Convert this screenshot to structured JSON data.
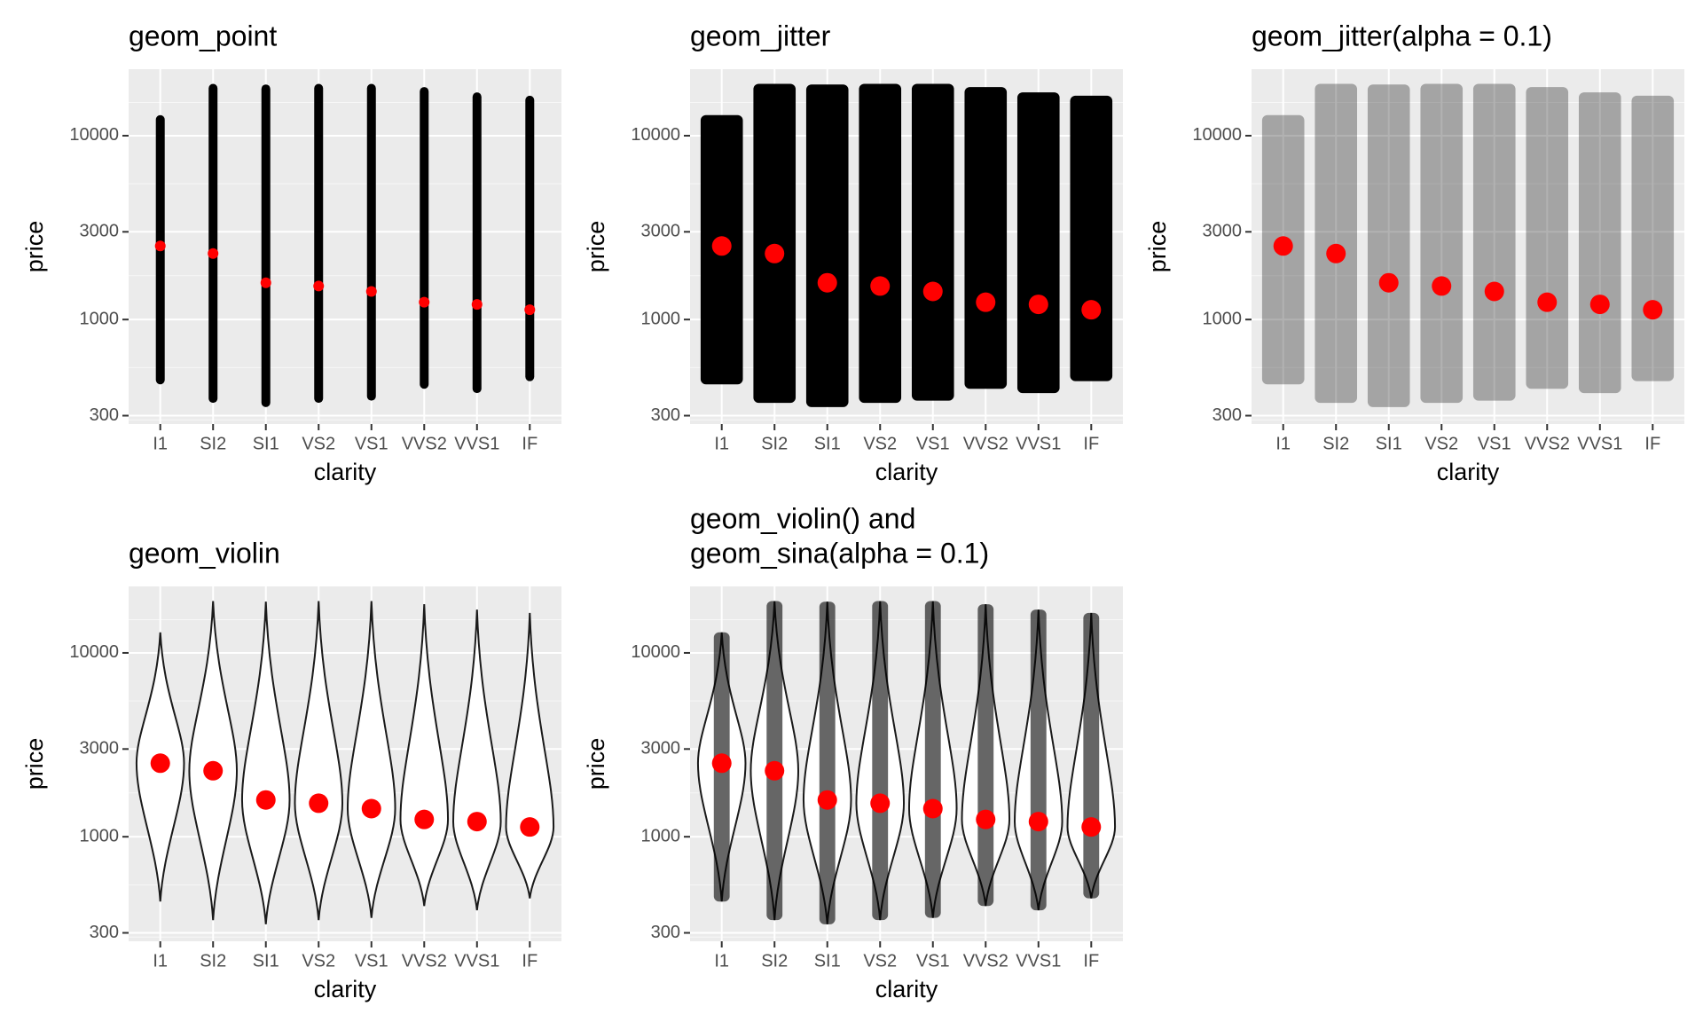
{
  "chart_data": [
    {
      "type": "point",
      "title": [
        "geom_point"
      ],
      "x_label": "clarity",
      "y_label": "price",
      "categories": [
        "I1",
        "SI2",
        "SI1",
        "VS2",
        "VS1",
        "VVS2",
        "VVS1",
        "IF"
      ],
      "y_scale": "log",
      "ylim": [
        270,
        23000
      ],
      "yticks": [
        300,
        1000,
        3000,
        10000
      ],
      "grid": true,
      "point_color": "#000000",
      "price_min": [
        444,
        352,
        334,
        352,
        362,
        420,
        398,
        462
      ],
      "price_max": [
        12940,
        19150,
        19000,
        19150,
        19150,
        18400,
        17200,
        16500
      ],
      "median": {
        "color": "#ff0000",
        "values": [
          2512,
          2285,
          1585,
          1521,
          1422,
          1242,
          1209,
          1130
        ]
      }
    },
    {
      "type": "jitter",
      "title": [
        "geom_jitter"
      ],
      "x_label": "clarity",
      "y_label": "price",
      "categories": [
        "I1",
        "SI2",
        "SI1",
        "VS2",
        "VS1",
        "VVS2",
        "VVS1",
        "IF"
      ],
      "y_scale": "log",
      "ylim": [
        270,
        23000
      ],
      "yticks": [
        300,
        1000,
        3000,
        10000
      ],
      "grid": true,
      "point_color": "#000000",
      "price_min": [
        444,
        352,
        334,
        352,
        362,
        420,
        398,
        462
      ],
      "price_max": [
        12940,
        19150,
        19000,
        19150,
        19150,
        18400,
        17200,
        16500
      ],
      "median": {
        "color": "#ff0000",
        "values": [
          2512,
          2285,
          1585,
          1521,
          1422,
          1242,
          1209,
          1130
        ]
      }
    },
    {
      "type": "jitter",
      "title": [
        "geom_jitter(alpha = 0.1)"
      ],
      "x_label": "clarity",
      "y_label": "price",
      "alpha": 0.1,
      "categories": [
        "I1",
        "SI2",
        "SI1",
        "VS2",
        "VS1",
        "VVS2",
        "VVS1",
        "IF"
      ],
      "y_scale": "log",
      "ylim": [
        270,
        23000
      ],
      "yticks": [
        300,
        1000,
        3000,
        10000
      ],
      "grid": true,
      "point_color": "#000000",
      "price_min": [
        444,
        352,
        334,
        352,
        362,
        420,
        398,
        462
      ],
      "price_max": [
        12940,
        19150,
        19000,
        19150,
        19150,
        18400,
        17200,
        16500
      ],
      "median": {
        "color": "#ff0000",
        "values": [
          2512,
          2285,
          1585,
          1521,
          1422,
          1242,
          1209,
          1130
        ]
      }
    },
    {
      "type": "violin",
      "title": [
        "geom_violin"
      ],
      "x_label": "clarity",
      "y_label": "price",
      "categories": [
        "I1",
        "SI2",
        "SI1",
        "VS2",
        "VS1",
        "VVS2",
        "VVS1",
        "IF"
      ],
      "y_scale": "log",
      "ylim": [
        270,
        23000
      ],
      "yticks": [
        300,
        1000,
        3000,
        10000
      ],
      "grid": true,
      "point_color": "#000000",
      "price_min": [
        444,
        352,
        334,
        352,
        362,
        420,
        398,
        462
      ],
      "price_max": [
        12940,
        19150,
        19000,
        19150,
        19150,
        18400,
        17200,
        16500
      ],
      "median": {
        "color": "#ff0000",
        "values": [
          2512,
          2285,
          1585,
          1521,
          1422,
          1242,
          1209,
          1130
        ]
      }
    },
    {
      "type": "violin_sina",
      "title": [
        "geom_violin() and",
        "geom_sina(alpha = 0.1)"
      ],
      "x_label": "clarity",
      "y_label": "price",
      "alpha": 0.1,
      "categories": [
        "I1",
        "SI2",
        "SI1",
        "VS2",
        "VS1",
        "VVS2",
        "VVS1",
        "IF"
      ],
      "y_scale": "log",
      "ylim": [
        270,
        23000
      ],
      "yticks": [
        300,
        1000,
        3000,
        10000
      ],
      "grid": true,
      "point_color": "#000000",
      "price_min": [
        444,
        352,
        334,
        352,
        362,
        420,
        398,
        462
      ],
      "price_max": [
        12940,
        19150,
        19000,
        19150,
        19150,
        18400,
        17200,
        16500
      ],
      "median": {
        "color": "#ff0000",
        "values": [
          2512,
          2285,
          1585,
          1521,
          1422,
          1242,
          1209,
          1130
        ]
      }
    }
  ]
}
